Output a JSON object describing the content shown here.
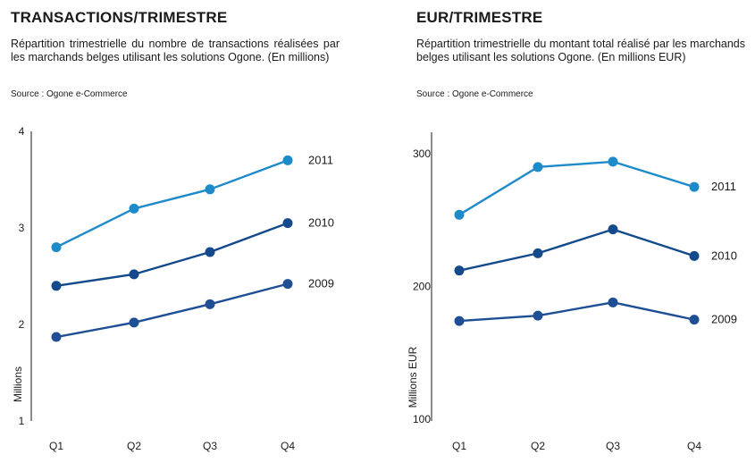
{
  "colors": {
    "2009": "#1e4f94",
    "2010": "#134a8c",
    "2011": "#1d8ac9"
  },
  "chart_data": [
    {
      "type": "line",
      "title": "TRANSACTIONS/TRIMESTRE",
      "subtitle": "Répartition trimestrielle du nombre de transactions réalisées par les marchands belges utilisant les solutions Ogone. (En millions)",
      "source": "Source : Ogone e-Commerce",
      "xlabel": "",
      "ylabel": "Millions",
      "categories": [
        "Q1",
        "Q2",
        "Q3",
        "Q4"
      ],
      "ylim": [
        1,
        4
      ],
      "yticks": [
        "4",
        "3",
        "2",
        "1"
      ],
      "series": [
        {
          "name": "2011",
          "values": [
            2.8,
            3.2,
            3.4,
            3.7
          ]
        },
        {
          "name": "2010",
          "values": [
            2.4,
            2.52,
            2.75,
            3.05
          ]
        },
        {
          "name": "2009",
          "values": [
            1.87,
            2.02,
            2.21,
            2.42
          ]
        }
      ]
    },
    {
      "type": "line",
      "title": "EUR/TRIMESTRE",
      "subtitle": "Répartition trimestrielle du montant total réalisé par les marchands belges utilisant les solutions Ogone. (En millions EUR)",
      "source": "Source : Ogone e-Commerce",
      "xlabel": "",
      "ylabel": "Millions EUR",
      "categories": [
        "Q1",
        "Q2",
        "Q3",
        "Q4"
      ],
      "ylim": [
        100,
        320
      ],
      "yticks": [
        "300",
        "200",
        "100"
      ],
      "series": [
        {
          "name": "2011",
          "values": [
            254,
            290,
            294,
            275
          ]
        },
        {
          "name": "2010",
          "values": [
            212,
            225,
            243,
            223
          ]
        },
        {
          "name": "2009",
          "values": [
            174,
            178,
            188,
            175
          ]
        }
      ]
    }
  ]
}
